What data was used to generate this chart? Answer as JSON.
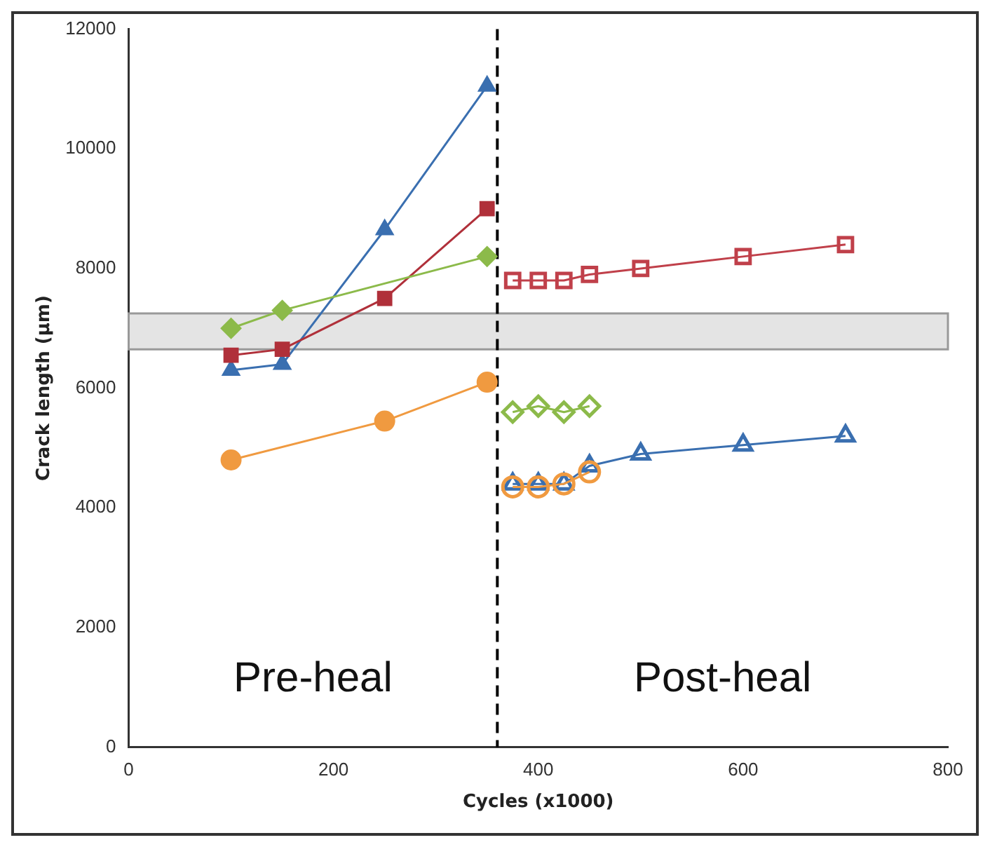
{
  "chart_data": {
    "type": "line",
    "xlabel": "Cycles (x1000)",
    "ylabel": "Crack length (µm)",
    "xlim": [
      0,
      800
    ],
    "xticks": [
      0,
      200,
      400,
      600,
      800
    ],
    "ylim": [
      0,
      12000
    ],
    "yticks": [
      0,
      2000,
      4000,
      6000,
      8000,
      10000,
      12000
    ],
    "grid": false,
    "legend": false,
    "line_style": "solid",
    "series": [
      {
        "color": "#3a6fb0",
        "marker": "triangle",
        "x": [
          100,
          150,
          250,
          350
        ],
        "values": [
          6300,
          6400,
          8650,
          11050
        ]
      },
      {
        "color": "#b0303a",
        "marker": "square",
        "x": [
          100,
          150,
          250,
          350
        ],
        "values": [
          6550,
          6650,
          7500,
          9000
        ]
      },
      {
        "color": "#8cba4a",
        "marker": "diamond",
        "x": [
          100,
          150,
          350
        ],
        "values": [
          7000,
          7300,
          8200
        ]
      },
      {
        "color": "#f09a40",
        "marker": "circle",
        "x": [
          100,
          250,
          350
        ],
        "values": [
          4800,
          5450,
          6100
        ]
      },
      {
        "color": "#c0404a",
        "marker": "square",
        "x": [
          375,
          400,
          425,
          450,
          500,
          600,
          700
        ],
        "values": [
          7800,
          7800,
          7800,
          7900,
          8000,
          8200,
          8400
        ]
      },
      {
        "color": "#8cba4a",
        "marker": "diamond",
        "x": [
          375,
          400,
          425,
          450
        ],
        "values": [
          5600,
          5700,
          5600,
          5700
        ]
      },
      {
        "color": "#3a6fb0",
        "marker": "triangle",
        "x": [
          375,
          400,
          425,
          450,
          500,
          600,
          700
        ],
        "values": [
          4400,
          4400,
          4400,
          4700,
          4900,
          5050,
          5200
        ]
      },
      {
        "color": "#f09a40",
        "marker": "circle",
        "x": [
          375,
          400,
          425,
          450
        ],
        "values": [
          4350,
          4350,
          4400,
          4600
        ]
      }
    ],
    "ref_lines": [
      {
        "axis": "x",
        "value": 360,
        "color": "#000000",
        "line_style": "dashed"
      }
    ],
    "bands": [
      {
        "axis": "y",
        "from": 6650,
        "to": 7250,
        "color": "#e4e4e4"
      }
    ],
    "annotations": [
      "Pre-heal",
      "Post-heal"
    ]
  }
}
